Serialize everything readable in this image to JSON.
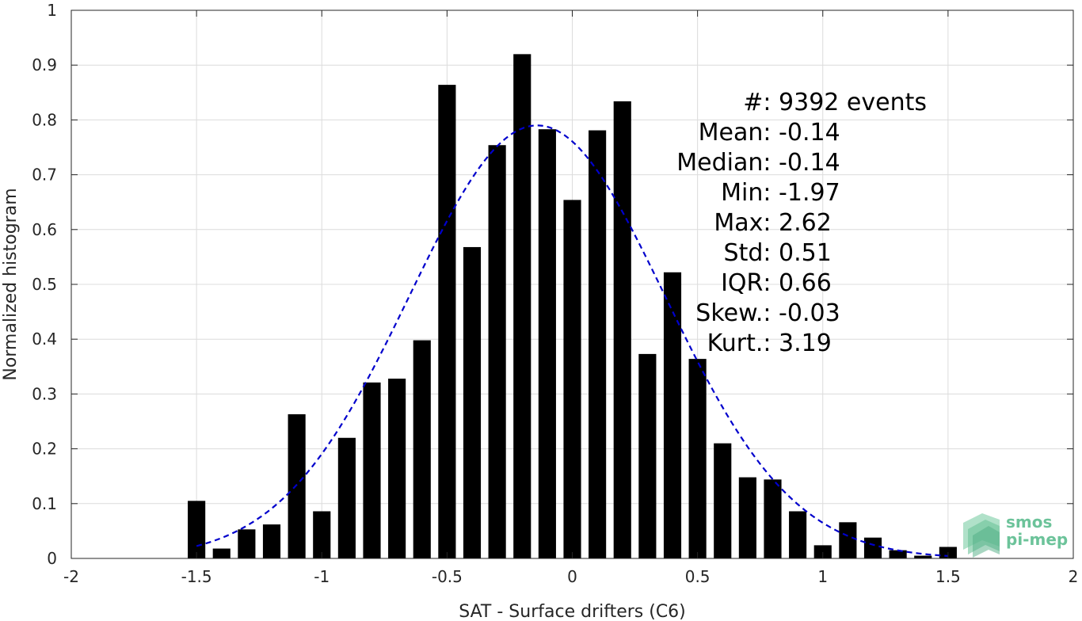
{
  "chart_data": {
    "type": "bar",
    "title": "",
    "xlabel": "SAT - Surface drifters (C6)",
    "ylabel": "Normalized histogram",
    "xlim": [
      -2,
      2
    ],
    "ylim": [
      0,
      1
    ],
    "xticks": [
      -2,
      -1.5,
      -1,
      -0.5,
      0,
      0.5,
      1,
      1.5,
      2
    ],
    "xtick_labels": [
      "-2",
      "-1.5",
      "-1",
      "-0.5",
      "0",
      "0.5",
      "1",
      "1.5",
      "2"
    ],
    "yticks": [
      0,
      0.1,
      0.2,
      0.3,
      0.4,
      0.5,
      0.6,
      0.7,
      0.8,
      0.9,
      1
    ],
    "ytick_labels": [
      "0",
      "0.1",
      "0.2",
      "0.3",
      "0.4",
      "0.5",
      "0.6",
      "0.7",
      "0.8",
      "0.9",
      "1"
    ],
    "grid": true,
    "bar_width": 0.07,
    "bar_color": "#000000",
    "bins": [
      -1.5,
      -1.4,
      -1.3,
      -1.2,
      -1.1,
      -1.0,
      -0.9,
      -0.8,
      -0.7,
      -0.6,
      -0.5,
      -0.4,
      -0.3,
      -0.2,
      -0.1,
      0.0,
      0.1,
      0.2,
      0.3,
      0.4,
      0.5,
      0.6,
      0.7,
      0.8,
      0.9,
      1.0,
      1.1,
      1.2,
      1.3,
      1.4,
      1.5
    ],
    "values": [
      0.105,
      0.018,
      0.053,
      0.062,
      0.263,
      0.086,
      0.22,
      0.321,
      0.328,
      0.398,
      0.864,
      0.568,
      0.754,
      0.92,
      0.783,
      0.654,
      0.781,
      0.834,
      0.373,
      0.522,
      0.364,
      0.21,
      0.148,
      0.144,
      0.086,
      0.024,
      0.066,
      0.038,
      0.015,
      0.005,
      0.021
    ],
    "fit_curve": {
      "type": "gaussian",
      "style": "dashed",
      "color": "#0000cc",
      "mean": -0.14,
      "std": 0.51,
      "peak": 0.79,
      "x_range": [
        -1.5,
        1.5
      ]
    },
    "annotations": [
      {
        "key": "#  ",
        "value": ": 9392 events"
      },
      {
        "key": "Mean ",
        "value": ": -0.14"
      },
      {
        "key": "Median ",
        "value": ": -0.14"
      },
      {
        "key": "Min ",
        "value": ": -1.97"
      },
      {
        "key": "Max ",
        "value": ": 2.62"
      },
      {
        "key": "Std ",
        "value": ": 0.51"
      },
      {
        "key": "IQR ",
        "value": ": 0.66"
      },
      {
        "key": "Skew. ",
        "value": ": -0.03"
      },
      {
        "key": "Kurt. ",
        "value": ": 3.19"
      }
    ]
  },
  "logo": {
    "line1": "smos",
    "line2": "pi-mep",
    "color": "#6cc39a"
  }
}
